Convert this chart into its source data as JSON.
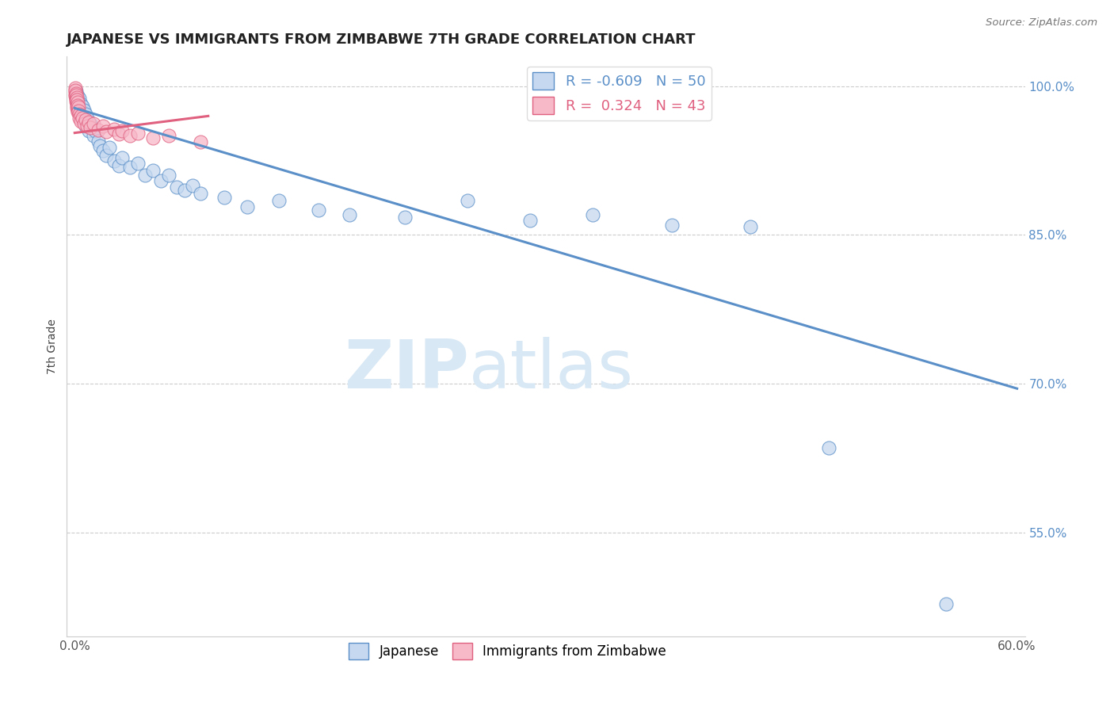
{
  "title": "JAPANESE VS IMMIGRANTS FROM ZIMBABWE 7TH GRADE CORRELATION CHART",
  "source": "Source: ZipAtlas.com",
  "ylabel": "7th Grade",
  "xlim": [
    -0.005,
    0.605
  ],
  "ylim": [
    0.445,
    1.03
  ],
  "yticks": [
    0.55,
    0.7,
    0.85,
    1.0
  ],
  "ytick_labels": [
    "55.0%",
    "70.0%",
    "85.0%",
    "100.0%"
  ],
  "xticks": [
    0.0,
    0.1,
    0.2,
    0.3,
    0.4,
    0.5,
    0.6
  ],
  "xtick_labels": [
    "0.0%",
    "",
    "",
    "",
    "",
    "",
    "60.0%"
  ],
  "blue_R": -0.609,
  "blue_N": 50,
  "pink_R": 0.324,
  "pink_N": 43,
  "blue_fill": "#c5d8f0",
  "pink_fill": "#f7b8c8",
  "blue_edge": "#5a8fc8",
  "pink_edge": "#e06080",
  "blue_scatter_x": [
    0.001,
    0.002,
    0.002,
    0.003,
    0.003,
    0.004,
    0.004,
    0.005,
    0.005,
    0.006,
    0.006,
    0.007,
    0.007,
    0.008,
    0.009,
    0.01,
    0.011,
    0.012,
    0.013,
    0.015,
    0.016,
    0.018,
    0.02,
    0.022,
    0.025,
    0.028,
    0.03,
    0.035,
    0.04,
    0.045,
    0.05,
    0.055,
    0.06,
    0.065,
    0.07,
    0.075,
    0.08,
    0.095,
    0.11,
    0.13,
    0.155,
    0.175,
    0.21,
    0.25,
    0.29,
    0.33,
    0.38,
    0.43,
    0.48,
    0.555
  ],
  "blue_scatter_y": [
    0.995,
    0.99,
    0.985,
    0.988,
    0.978,
    0.982,
    0.975,
    0.98,
    0.97,
    0.976,
    0.965,
    0.972,
    0.96,
    0.968,
    0.955,
    0.962,
    0.958,
    0.95,
    0.955,
    0.945,
    0.94,
    0.935,
    0.93,
    0.938,
    0.925,
    0.92,
    0.928,
    0.918,
    0.922,
    0.91,
    0.915,
    0.905,
    0.91,
    0.898,
    0.895,
    0.9,
    0.892,
    0.888,
    0.878,
    0.885,
    0.875,
    0.87,
    0.868,
    0.885,
    0.865,
    0.87,
    0.86,
    0.858,
    0.635,
    0.478
  ],
  "pink_scatter_x": [
    0.0002,
    0.0003,
    0.0004,
    0.0005,
    0.0006,
    0.0007,
    0.0008,
    0.0009,
    0.001,
    0.001,
    0.0012,
    0.0013,
    0.0014,
    0.0015,
    0.0016,
    0.0017,
    0.0018,
    0.002,
    0.002,
    0.0022,
    0.0025,
    0.003,
    0.003,
    0.004,
    0.004,
    0.005,
    0.006,
    0.007,
    0.008,
    0.009,
    0.01,
    0.012,
    0.015,
    0.018,
    0.02,
    0.025,
    0.028,
    0.03,
    0.035,
    0.04,
    0.05,
    0.06,
    0.08
  ],
  "pink_scatter_y": [
    0.995,
    0.992,
    0.998,
    0.99,
    0.996,
    0.988,
    0.993,
    0.985,
    0.991,
    0.987,
    0.983,
    0.989,
    0.98,
    0.986,
    0.978,
    0.984,
    0.976,
    0.981,
    0.974,
    0.979,
    0.975,
    0.972,
    0.968,
    0.97,
    0.965,
    0.968,
    0.962,
    0.966,
    0.96,
    0.964,
    0.958,
    0.962,
    0.956,
    0.96,
    0.954,
    0.957,
    0.952,
    0.955,
    0.95,
    0.953,
    0.948,
    0.95,
    0.944
  ],
  "blue_trend_x": [
    0.0,
    0.6
  ],
  "blue_trend_y": [
    0.978,
    0.695
  ],
  "pink_trend_x": [
    0.0,
    0.085
  ],
  "pink_trend_y": [
    0.953,
    0.97
  ],
  "watermark_zip": "ZIP",
  "watermark_atlas": "atlas",
  "wm_color": "#d8e8f5"
}
